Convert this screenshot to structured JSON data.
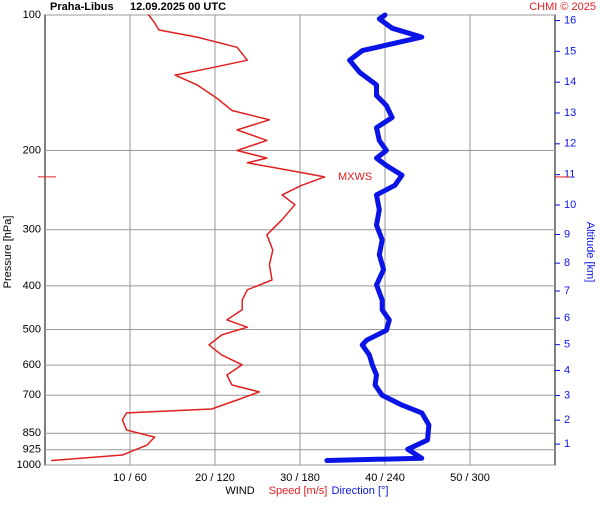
{
  "chart_data": {
    "type": "profile",
    "station": "Praha-Libus",
    "time": "12.09.2025 00 UTC",
    "credit": "CHMI © 2025",
    "ylabel": "Pressure [hPa]",
    "y2label": "Altitude [km]",
    "xlabel": "WIND",
    "ylim": [
      1000,
      100
    ],
    "ylog": true,
    "yticks": [
      100,
      200,
      300,
      400,
      500,
      600,
      700,
      850,
      925,
      1000
    ],
    "xlim": [
      0,
      60
    ],
    "x2lim": [
      0,
      360
    ],
    "xticks": [
      {
        "value": 10,
        "label": "10 / 60"
      },
      {
        "value": 20,
        "label": "20 / 120"
      },
      {
        "value": 30,
        "label": "30 / 180"
      },
      {
        "value": 40,
        "label": "40 / 240"
      },
      {
        "value": 50,
        "label": "50 / 300"
      }
    ],
    "y2ticks": [
      1,
      2,
      3,
      4,
      5,
      6,
      7,
      8,
      9,
      10,
      11,
      12,
      13,
      14,
      15,
      16
    ],
    "grid": true,
    "annotation": {
      "text": "MXWS",
      "pressure": 229,
      "color": "#e02020"
    },
    "series": [
      {
        "name": "Speed [m/s]",
        "color": "#e02020",
        "axis": "x",
        "pressure": [
          977,
          950,
          903,
          867,
          836,
          794,
          766,
          751,
          717,
          688,
          664,
          631,
          599,
          570,
          541,
          514,
          494,
          476,
          452,
          430,
          408,
          388,
          359,
          333,
          308,
          285,
          264,
          251,
          239,
          229,
          221,
          213,
          208,
          200,
          190,
          180,
          171,
          163,
          153,
          143,
          136,
          131,
          126,
          118,
          112,
          108,
          104,
          100
        ],
        "values": [
          0.8,
          9.1,
          12,
          12.9,
          9.6,
          9.1,
          9.6,
          19.6,
          22.6,
          25.2,
          22,
          21.4,
          23.2,
          20.8,
          19.3,
          20.8,
          23.8,
          21.4,
          23.2,
          23.2,
          23.8,
          26.7,
          26.4,
          26.8,
          26.1,
          27.9,
          29.4,
          27.9,
          30.2,
          32.9,
          28.5,
          23.8,
          26.1,
          22.6,
          26.1,
          22.6,
          26.4,
          22,
          20.2,
          17.9,
          15.3,
          19.6,
          23.8,
          22.6,
          17.9,
          13.4,
          12.9,
          12.2
        ]
      },
      {
        "name": "Direction [°]",
        "color": "#0a14e6",
        "axis": "x2",
        "pressure": [
          977,
          966,
          923,
          880,
          815,
          766,
          736,
          700,
          664,
          631,
          599,
          570,
          541,
          528,
          502,
          476,
          452,
          430,
          398,
          368,
          341,
          316,
          293,
          271,
          251,
          239,
          227,
          216,
          208,
          200,
          190,
          178,
          169,
          159,
          151,
          143,
          134,
          126,
          120,
          112,
          107,
          102,
          100
        ],
        "values": [
          199,
          266,
          256,
          270,
          271,
          266,
          252,
          238,
          233,
          234,
          231,
          229,
          224,
          227,
          241,
          243,
          238,
          238,
          234,
          239,
          236,
          238,
          234,
          236,
          234,
          247,
          252,
          241,
          234,
          241,
          236,
          234,
          245,
          241,
          234,
          234,
          222,
          215,
          224,
          266,
          245,
          236,
          240
        ]
      }
    ]
  }
}
